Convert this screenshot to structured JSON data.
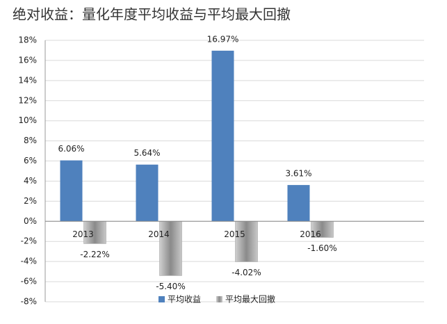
{
  "chart_data": {
    "type": "bar",
    "title": "绝对收益：量化年度平均收益与平均最大回撤",
    "categories": [
      "2013",
      "2014",
      "2015",
      "2016"
    ],
    "series": [
      {
        "name": "平均收益",
        "color": "#4f81bd",
        "values": [
          6.06,
          5.64,
          16.97,
          3.61
        ],
        "value_labels": [
          "6.06%",
          "5.64%",
          "16.97%",
          "3.61%"
        ]
      },
      {
        "name": "平均最大回撤",
        "color": "#9a9a9a",
        "values": [
          -2.22,
          -5.4,
          -4.02,
          -1.6
        ],
        "value_labels": [
          "-2.22%",
          "-5.40%",
          "-4.02%",
          "-1.60%"
        ]
      }
    ],
    "ylim": [
      -8,
      18
    ],
    "yticks": [
      {
        "value": -8,
        "label": "-8%"
      },
      {
        "value": -6,
        "label": "-6%"
      },
      {
        "value": -4,
        "label": "-4%"
      },
      {
        "value": -2,
        "label": "-2%"
      },
      {
        "value": 0,
        "label": "0%"
      },
      {
        "value": 2,
        "label": "2%"
      },
      {
        "value": 4,
        "label": "4%"
      },
      {
        "value": 6,
        "label": "6%"
      },
      {
        "value": 8,
        "label": "8%"
      },
      {
        "value": 10,
        "label": "10%"
      },
      {
        "value": 12,
        "label": "12%"
      },
      {
        "value": 14,
        "label": "14%"
      },
      {
        "value": 16,
        "label": "16%"
      },
      {
        "value": 18,
        "label": "18%"
      }
    ],
    "grid": true,
    "legend": "bottom"
  }
}
